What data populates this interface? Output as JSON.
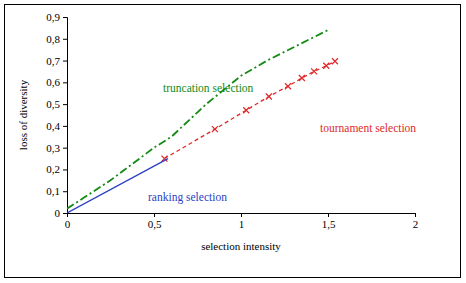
{
  "chart_data": {
    "type": "line",
    "x_label": "selection intensity",
    "y_label": "loss of diversity",
    "xlim": [
      0,
      2
    ],
    "ylim": [
      0,
      0.9
    ],
    "xticks": [
      0,
      {
        "value": 0.5,
        "label": "0,5"
      },
      1,
      {
        "value": 1.5,
        "label": "1,5"
      },
      2
    ],
    "yticks": [
      0,
      {
        "value": 0.1,
        "label": "0,1"
      },
      {
        "value": 0.2,
        "label": "0,2"
      },
      {
        "value": 0.3,
        "label": "0,3"
      },
      {
        "value": 0.4,
        "label": "0,4"
      },
      {
        "value": 0.5,
        "label": "0,5"
      },
      {
        "value": 0.6,
        "label": "0,6"
      },
      {
        "value": 0.7,
        "label": "0,7"
      },
      {
        "value": 0.8,
        "label": "0,8"
      },
      {
        "value": 0.9,
        "label": "0,9"
      }
    ],
    "grid": false,
    "series": [
      {
        "name": "truncation selection",
        "color": "#138a13",
        "line_style": "dashdot",
        "x": [
          0,
          0.25,
          0.5,
          0.6,
          0.8,
          1.0,
          1.15,
          1.3,
          1.5
        ],
        "values": [
          0.02,
          0.15,
          0.3,
          0.35,
          0.5,
          0.63,
          0.7,
          0.76,
          0.84
        ]
      },
      {
        "name": "tournament selection",
        "color": "#e02828",
        "line_style": "dashed",
        "marker": "x",
        "x": [
          0.56,
          0.85,
          1.03,
          1.16,
          1.27,
          1.35,
          1.42,
          1.49,
          1.54
        ],
        "values": [
          0.25,
          0.385,
          0.472,
          0.535,
          0.582,
          0.62,
          0.65,
          0.676,
          0.697
        ]
      },
      {
        "name": "ranking selection",
        "color": "#2a3fc2",
        "line_style": "solid",
        "x": [
          0,
          0.58
        ],
        "values": [
          0,
          0.25
        ]
      }
    ]
  }
}
